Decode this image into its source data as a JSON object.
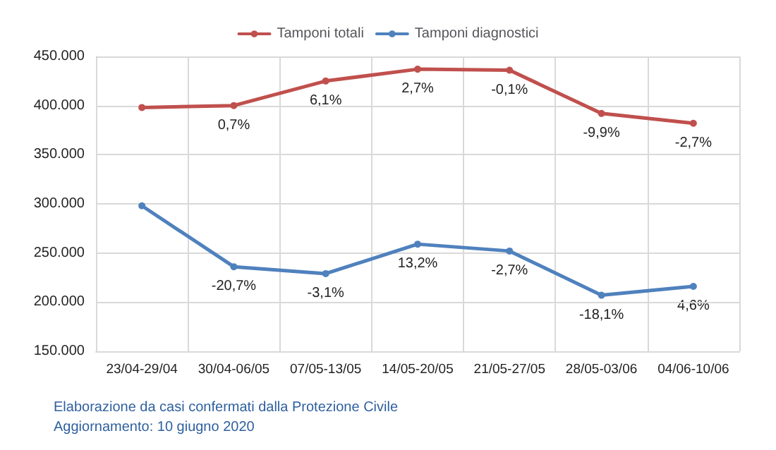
{
  "chart_data": {
    "type": "line",
    "categories": [
      "23/04-29/04",
      "30/04-06/05",
      "07/05-13/05",
      "14/05-20/05",
      "21/05-27/05",
      "28/05-03/06",
      "04/06-10/06"
    ],
    "series": [
      {
        "name": "Tamponi totali",
        "color": "#c0504d",
        "values": [
          398000,
          400000,
          425000,
          437000,
          436000,
          392000,
          382000
        ]
      },
      {
        "name": "Tamponi diagnostici",
        "color": "#4f81bd",
        "values": [
          298000,
          236000,
          229000,
          259000,
          252000,
          207000,
          216000
        ]
      }
    ],
    "ylim": [
      150000,
      450000
    ],
    "yticks": [
      {
        "value": 150000,
        "label": "150.000"
      },
      {
        "value": 200000,
        "label": "200.000"
      },
      {
        "value": 250000,
        "label": "250.000"
      },
      {
        "value": 300000,
        "label": "300.000"
      },
      {
        "value": 350000,
        "label": "350.000"
      },
      {
        "value": 400000,
        "label": "400.000"
      },
      {
        "value": 450000,
        "label": "450.000"
      }
    ],
    "grid": true,
    "legend": "top",
    "marker": "circle",
    "line_style": "solid",
    "annotations": [
      "Elaborazione da casi confermati dalla Protezione Civile",
      "Aggiornamento: 10 giugno 2020",
      {
        "text": "0,7%",
        "x": "30/04-06/05",
        "y": 400000
      },
      {
        "text": "6,1%",
        "x": "07/05-13/05",
        "y": 425000
      },
      {
        "text": "2,7%",
        "x": "14/05-20/05",
        "y": 437000
      },
      {
        "text": "-0,1%",
        "x": "21/05-27/05",
        "y": 436000
      },
      {
        "text": "-9,9%",
        "x": "28/05-03/06",
        "y": 392000
      },
      {
        "text": "-2,7%",
        "x": "04/06-10/06",
        "y": 382000
      },
      {
        "text": "-20,7%",
        "x": "30/04-06/05",
        "y": 236000
      },
      {
        "text": "-3,1%",
        "x": "07/05-13/05",
        "y": 229000
      },
      {
        "text": "13,2%",
        "x": "14/05-20/05",
        "y": 259000
      },
      {
        "text": "-2,7%",
        "x": "21/05-27/05",
        "y": 252000
      },
      {
        "text": "-18,1%",
        "x": "28/05-03/06",
        "y": 207000
      },
      {
        "text": "4,6%",
        "x": "04/06-10/06",
        "y": 216000
      }
    ]
  }
}
